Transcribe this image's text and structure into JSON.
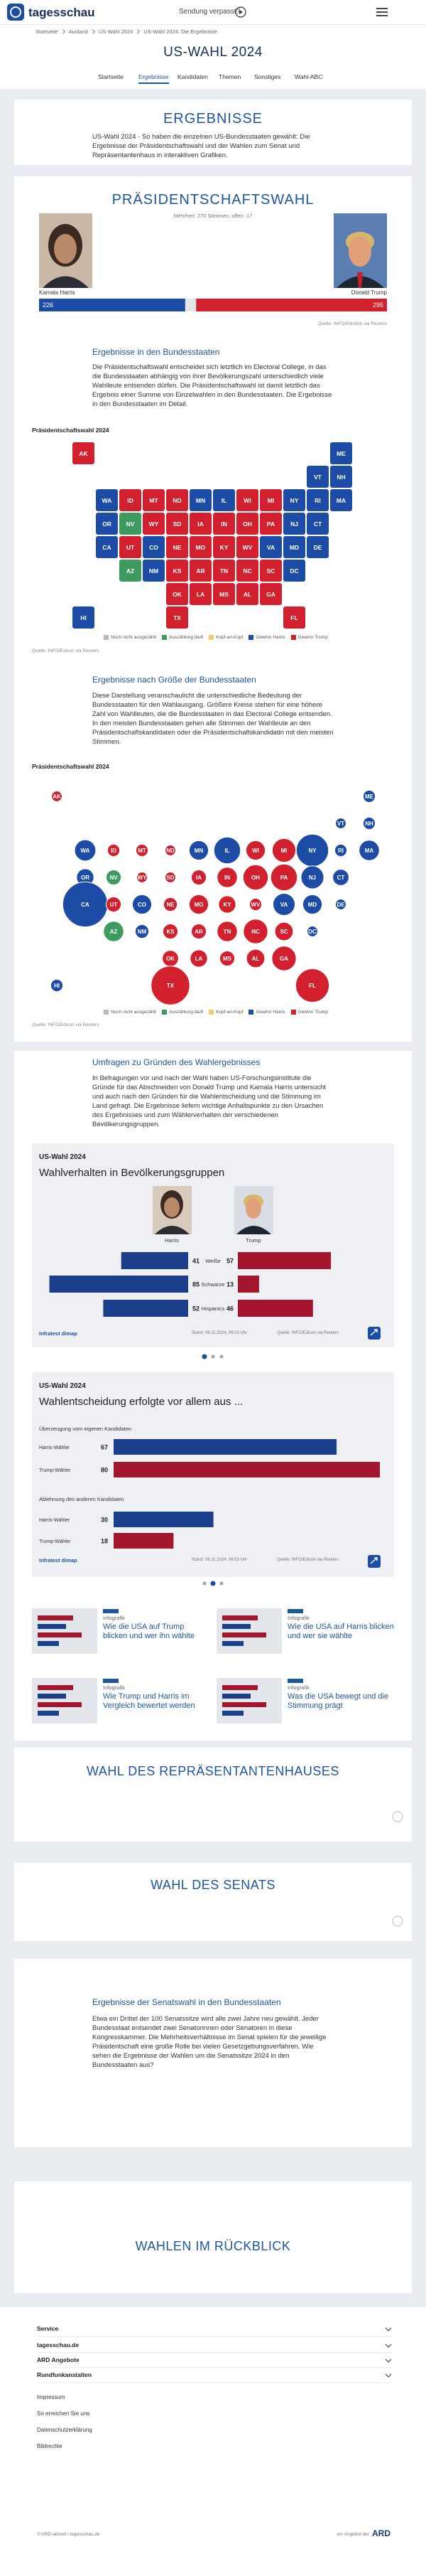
{
  "header": {
    "logo": "tagesschau",
    "missed": "Sendung verpasst?"
  },
  "breadcrumb": [
    "Startseite",
    "Ausland",
    "US-Wahl 2024",
    "US-Wahl 2024: Die Ergebnisse"
  ],
  "page_title": "US-WAHL 2024",
  "tabs": [
    "Startseite",
    "Ergebnisse",
    "Kandidaten",
    "Themen",
    "Sonstiges",
    "Wahl-ABC"
  ],
  "active_tab": 1,
  "results": {
    "title": "ERGEBNISSE",
    "text": "US-Wahl 2024 - So haben die einzelnen US-Bundesstaaten gewählt: Die Ergebnisse der Präsidentschaftswahl und der Wahlen zum Senat und Repräsentantenhaus in interaktiven Grafiken."
  },
  "president": {
    "title": "PRÄSIDENTSCHAFTSWAHL",
    "subtitle": "Mehrheit: 270 Stimmen; offen: 17",
    "candidates": [
      {
        "name": "Kamala Harris",
        "votes": 226,
        "color": "#1d4ca6"
      },
      {
        "name": "Donald Trump",
        "votes": 295,
        "color": "#d2202f"
      }
    ],
    "xlim": [
      0,
      538
    ],
    "source": "Quelle: INFO/Election via Reuters"
  },
  "states_section": {
    "heading": "Ergebnisse in den Bundesstaaten",
    "text": "Die Präsidentschaftswahl entscheidet sich letztlich im Electoral College, in das die Bundesstaaten abhängig von ihrer Bevölkerungszahl unterschiedlich viele Wahlleute entsenden dürfen. Die Präsidentschaftswahl ist damit letztlich das Ergebnis einer Summe von Einzelwahlen in den Bundesstaaten. Die Ergebnisse in den Bundesstaaten im Detail.",
    "chart_title": "Präsidentschaftswahl 2024"
  },
  "legend": [
    {
      "label": "Noch nicht ausgezählt",
      "color": "#b9b9b9"
    },
    {
      "label": "Auszählung läuft",
      "color": "#3e9b5f"
    },
    {
      "label": "Kopf-an-Kopf",
      "color": "#e8cf6a"
    },
    {
      "label": "Gewinn Harris",
      "color": "#1d4ca6"
    },
    {
      "label": "Gewinn Trump",
      "color": "#d2202f"
    }
  ],
  "map_source": "Quelle: INFO/Edison via Reuters",
  "states": [
    {
      "abbr": "AK",
      "color": "#d2202f",
      "ev": 3
    },
    {
      "abbr": "ME",
      "color": "#1d4ca6",
      "ev": 4
    },
    {
      "abbr": "VT",
      "color": "#1d4ca6",
      "ev": 3
    },
    {
      "abbr": "NH",
      "color": "#1d4ca6",
      "ev": 4
    },
    {
      "abbr": "WA",
      "color": "#1d4ca6",
      "ev": 12
    },
    {
      "abbr": "ID",
      "color": "#d2202f",
      "ev": 4
    },
    {
      "abbr": "MT",
      "color": "#d2202f",
      "ev": 4
    },
    {
      "abbr": "ND",
      "color": "#d2202f",
      "ev": 3
    },
    {
      "abbr": "MN",
      "color": "#1d4ca6",
      "ev": 10
    },
    {
      "abbr": "IL",
      "color": "#1d4ca6",
      "ev": 19
    },
    {
      "abbr": "WI",
      "color": "#d2202f",
      "ev": 10
    },
    {
      "abbr": "MI",
      "color": "#d2202f",
      "ev": 15
    },
    {
      "abbr": "NY",
      "color": "#1d4ca6",
      "ev": 28
    },
    {
      "abbr": "RI",
      "color": "#1d4ca6",
      "ev": 4
    },
    {
      "abbr": "MA",
      "color": "#1d4ca6",
      "ev": 11
    },
    {
      "abbr": "OR",
      "color": "#1d4ca6",
      "ev": 8
    },
    {
      "abbr": "NV",
      "color": "#3e9b5f",
      "ev": 6
    },
    {
      "abbr": "WY",
      "color": "#d2202f",
      "ev": 3
    },
    {
      "abbr": "SD",
      "color": "#d2202f",
      "ev": 3
    },
    {
      "abbr": "IA",
      "color": "#d2202f",
      "ev": 6
    },
    {
      "abbr": "IN",
      "color": "#d2202f",
      "ev": 11
    },
    {
      "abbr": "OH",
      "color": "#d2202f",
      "ev": 17
    },
    {
      "abbr": "PA",
      "color": "#d2202f",
      "ev": 19
    },
    {
      "abbr": "NJ",
      "color": "#1d4ca6",
      "ev": 14
    },
    {
      "abbr": "CT",
      "color": "#1d4ca6",
      "ev": 7
    },
    {
      "abbr": "CA",
      "color": "#1d4ca6",
      "ev": 54
    },
    {
      "abbr": "UT",
      "color": "#d2202f",
      "ev": 6
    },
    {
      "abbr": "CO",
      "color": "#1d4ca6",
      "ev": 10
    },
    {
      "abbr": "NE",
      "color": "#d2202f",
      "ev": 5
    },
    {
      "abbr": "MO",
      "color": "#d2202f",
      "ev": 10
    },
    {
      "abbr": "KY",
      "color": "#d2202f",
      "ev": 8
    },
    {
      "abbr": "WV",
      "color": "#d2202f",
      "ev": 4
    },
    {
      "abbr": "VA",
      "color": "#1d4ca6",
      "ev": 13
    },
    {
      "abbr": "MD",
      "color": "#1d4ca6",
      "ev": 10
    },
    {
      "abbr": "DE",
      "color": "#1d4ca6",
      "ev": 3
    },
    {
      "abbr": "AZ",
      "color": "#3e9b5f",
      "ev": 11
    },
    {
      "abbr": "NM",
      "color": "#1d4ca6",
      "ev": 5
    },
    {
      "abbr": "KS",
      "color": "#d2202f",
      "ev": 6
    },
    {
      "abbr": "AR",
      "color": "#d2202f",
      "ev": 6
    },
    {
      "abbr": "TN",
      "color": "#d2202f",
      "ev": 11
    },
    {
      "abbr": "NC",
      "color": "#d2202f",
      "ev": 16
    },
    {
      "abbr": "SC",
      "color": "#d2202f",
      "ev": 9
    },
    {
      "abbr": "DC",
      "color": "#1d4ca6",
      "ev": 3
    },
    {
      "abbr": "OK",
      "color": "#d2202f",
      "ev": 7
    },
    {
      "abbr": "LA",
      "color": "#d2202f",
      "ev": 8
    },
    {
      "abbr": "MS",
      "color": "#d2202f",
      "ev": 6
    },
    {
      "abbr": "AL",
      "color": "#d2202f",
      "ev": 9
    },
    {
      "abbr": "GA",
      "color": "#d2202f",
      "ev": 16
    },
    {
      "abbr": "HI",
      "color": "#1d4ca6",
      "ev": 4
    },
    {
      "abbr": "TX",
      "color": "#d2202f",
      "ev": 40
    },
    {
      "abbr": "FL",
      "color": "#d2202f",
      "ev": 30
    }
  ],
  "size_section": {
    "heading": "Ergebnisse nach Größe der Bundesstaaten",
    "text": "Diese Darstellung veranschaulicht die unterschiedliche Bedeutung der Bundesstaaten für den Wahlausgang. Größere Kreise stehen für eine höhere Zahl von Wahlleuten, die die Bundesstaaten in das Electoral College entsenden. In den meisten Bundesstaaten gehen alle Stimmen der Wahlleute an den Präsidentschaftskandidaten oder die Präsidentschaftskandidatin mit den meisten Stimmen.",
    "chart_title": "Präsidentschaftswahl 2024"
  },
  "polls_section": {
    "heading": "Umfragen zu Gründen des Wahlergebnisses",
    "text": "In Befragungen vor und nach der Wahl haben US-Forschungsinstitute die Gründe für das Abschneiden von Donald Trump und Kamala Harris untersucht und auch nach den Gründen für die Wahlentscheidung und die Stimmung im Land gefragt. Die Ergebnisse liefern wichtige Anhaltspunkte zu den Ursachen des Ergebnisses und zum Wählerverhalten der verschiedenen Bevölkerungsgruppen."
  },
  "poll_cards": [
    {
      "topline": "US-Wahl 2024",
      "title": "Wahlverhalten in Bevölkerungsgruppen",
      "series": [
        {
          "name": "Harris",
          "color": "#1c3f8c"
        },
        {
          "name": "Trump",
          "color": "#a3162e"
        }
      ],
      "rows": [
        {
          "label": "Weiße",
          "values": [
            41,
            57
          ]
        },
        {
          "label": "Schwarze",
          "values": [
            85,
            13
          ]
        },
        {
          "label": "Hispanics",
          "values": [
            52,
            46
          ]
        }
      ],
      "xlim": [
        0,
        100
      ],
      "brand": "Infratest dimap",
      "stand": "Stand: 06.11.2024, 09:03 Uhr",
      "source": "Quelle: INFO/Edison via Reuters"
    },
    {
      "topline": "US-Wahl 2024",
      "title": "Wahlentscheidung erfolgte vor allem aus ...",
      "groups": [
        {
          "heading": "Überzeugung vom eigenen Kandidaten",
          "rows": [
            {
              "label": "Harris-Wähler",
              "value": 67,
              "color": "#1c3f8c"
            },
            {
              "label": "Trump-Wähler",
              "value": 80,
              "color": "#a3162e"
            }
          ]
        },
        {
          "heading": "Ablehnung des anderen Kandidaten",
          "rows": [
            {
              "label": "Harris-Wähler",
              "value": 30,
              "color": "#1c3f8c"
            },
            {
              "label": "Trump-Wähler",
              "value": 18,
              "color": "#a3162e"
            }
          ]
        }
      ],
      "xlim": [
        0,
        80
      ],
      "brand": "Infratest dimap",
      "stand": "Stand: 06.11.2024, 09:03 Uhr",
      "source": "Quelle: INFO/Edison via Reuters"
    }
  ],
  "teasers": [
    {
      "kicker": "Infografik",
      "title": "Wie die USA auf Trump blicken und wer ihn wählte"
    },
    {
      "kicker": "Infografik",
      "title": "Wie die USA auf Harris blicken und wer sie wählte"
    },
    {
      "kicker": "Infografik",
      "title": "Wie Trump und Harris im Vergleich bewertet werden"
    },
    {
      "kicker": "Infografik",
      "title": "Was die USA bewegt und die Stimmung prägt"
    }
  ],
  "house": {
    "title": "WAHL DES REPRÄSENTANTENHAUSES"
  },
  "senate": {
    "title": "WAHL DES SENATS"
  },
  "senate_states": {
    "heading": "Ergebnisse der Senatswahl in den Bundesstaaten",
    "text": "Etwa ein Drittel der 100 Senatssitze wird alle zwei Jahre neu gewählt. Jeder Bundesstaat entsendet zwei Senatorinnen oder Senatoren in diese Kongresskammer. Die Mehrheitsverhältnisse im Senat spielen für die jeweilige Präsidentschaft eine große Rolle bei vielen Gesetzgebungsverfahren. Wie sehen die Ergebnisse der Wahlen um die Senatssitze 2024 in den Bundesstaaten aus?"
  },
  "history": {
    "title": "WAHLEN IM RÜCKBLICK"
  },
  "footer": {
    "menu": [
      "Service",
      "tagesschau.de",
      "ARD Angebote",
      "Rundfunkanstalten"
    ],
    "links": [
      "Impressum",
      "So erreichen Sie uns",
      "Datenschutzerklärung",
      "Bildrechte"
    ],
    "copyright": "© ARD-aktuell / tagesschau.de",
    "ard_label": "ein Angebot der",
    "ard_logo": "ARD"
  }
}
